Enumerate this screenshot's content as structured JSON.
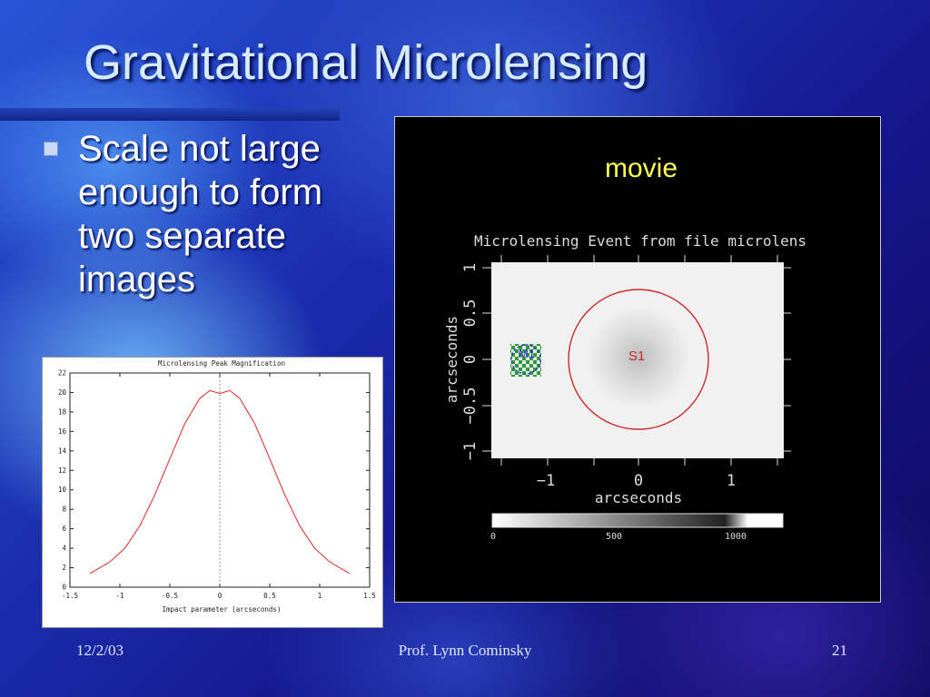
{
  "slide": {
    "title": "Gravitational Microlensing",
    "bullet": "Scale not large enough to form two separate images",
    "footer_left": "12/2/03",
    "footer_center": "Prof. Lynn Cominsky",
    "footer_right": "21",
    "colors": {
      "title": "#d8ecff",
      "movie_label": "#ffff55",
      "curve": "#e03a3a",
      "ring": "#cc2a2a"
    }
  },
  "movie": {
    "label": "movie",
    "image_title": "Microlensing Event     from file microlens",
    "xlabel": "arcseconds",
    "ylabel": "arcseconds",
    "x_ticks": [
      "−1",
      "0",
      "1"
    ],
    "y_ticks": [
      "1",
      "0.5",
      "0",
      "−0.5",
      "−1"
    ],
    "source_label": "S1",
    "lens_label": "M1",
    "colorbar_ticks": [
      "0",
      "500",
      "1000"
    ]
  },
  "chart_data": {
    "type": "line",
    "title": "Microlensing Peak Magnification",
    "xlabel": "Impact parameter (arcseconds)",
    "ylabel": "",
    "xlim": [
      -1.5,
      1.5
    ],
    "ylim": [
      0,
      22
    ],
    "x_tick_labels": [
      "-1.5",
      "-1",
      "-0.5",
      "0",
      "0.5",
      "1",
      "1.5"
    ],
    "y_tick_labels": [
      "0",
      "2",
      "4",
      "6",
      "8",
      "10",
      "12",
      "14",
      "16",
      "18",
      "20",
      "22"
    ],
    "grid": false,
    "series": [
      {
        "x": [
          -1.3,
          -1.1,
          -0.95,
          -0.8,
          -0.65,
          -0.5,
          -0.35,
          -0.2,
          -0.1,
          0,
          0.1,
          0.2,
          0.35,
          0.5,
          0.65,
          0.8,
          0.95,
          1.1,
          1.3
        ],
        "y": [
          1.4,
          2.6,
          4.0,
          6.3,
          9.5,
          13.2,
          16.8,
          19.4,
          20.2,
          19.9,
          20.2,
          19.4,
          16.8,
          13.2,
          9.5,
          6.3,
          4.0,
          2.6,
          1.4
        ]
      }
    ]
  }
}
